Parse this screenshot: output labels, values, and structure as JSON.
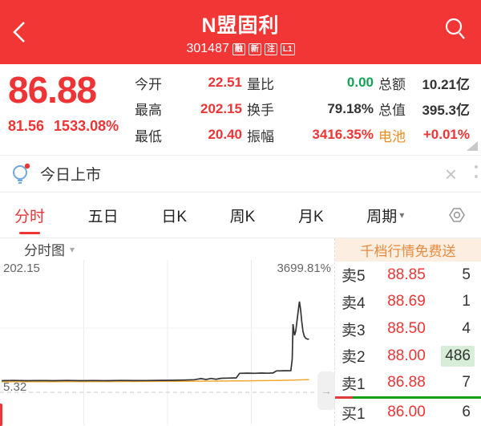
{
  "header": {
    "title": "N盟固利",
    "code": "301487",
    "badges": [
      "融",
      "新",
      "注",
      "L1"
    ]
  },
  "quote": {
    "price": "86.88",
    "change": "81.56",
    "change_pct": "1533.08%",
    "stats": [
      {
        "label": "今开",
        "value": "22.51",
        "color": "red"
      },
      {
        "label": "最高",
        "value": "202.15",
        "color": "red"
      },
      {
        "label": "最低",
        "value": "20.40",
        "color": "red"
      },
      {
        "label": "量比",
        "value": "0.00",
        "color": "green"
      },
      {
        "label": "换手",
        "value": "79.18%",
        "color": "dark"
      },
      {
        "label": "振幅",
        "value": "3416.35%",
        "color": "red"
      },
      {
        "label": "总额",
        "value": "10.21亿",
        "color": "dark"
      },
      {
        "label": "总值",
        "value": "395.3亿",
        "color": "dark"
      },
      {
        "label": "电池",
        "value": "+0.01%",
        "color": "red",
        "label_color": "orange"
      }
    ]
  },
  "notice": {
    "text": "今日上市"
  },
  "tabs": {
    "items": [
      "分时",
      "五日",
      "日K",
      "周K",
      "月K"
    ],
    "active": "分时",
    "period_label": "周期"
  },
  "chart_data": {
    "type": "line",
    "title": "分时图",
    "top_label": "202.15",
    "right_top_label": "3699.81%",
    "prev_close_label": "5.32",
    "y_top": 202.15,
    "y_prev_close": 5.32,
    "x_axis": "trading session 09:30-15:00, x as fraction of day",
    "grid": {
      "v_fractions": [
        0.25,
        0.5,
        0.75
      ],
      "h_mid_value": 103.74
    },
    "series": [
      {
        "name": "price",
        "color": "#333333",
        "points": [
          [
            0.005,
            23.2
          ],
          [
            0.04,
            23.5
          ],
          [
            0.08,
            23.1
          ],
          [
            0.12,
            23.4
          ],
          [
            0.16,
            23.2
          ],
          [
            0.2,
            23.5
          ],
          [
            0.24,
            23.2
          ],
          [
            0.28,
            23.4
          ],
          [
            0.32,
            23.2
          ],
          [
            0.36,
            23.5
          ],
          [
            0.4,
            23.3
          ],
          [
            0.44,
            23.4
          ],
          [
            0.48,
            23.6
          ],
          [
            0.52,
            23.8
          ],
          [
            0.55,
            24.1
          ],
          [
            0.58,
            24.6
          ],
          [
            0.6,
            26.3
          ],
          [
            0.615,
            25.0
          ],
          [
            0.63,
            26.6
          ],
          [
            0.645,
            25.4
          ],
          [
            0.66,
            26.8
          ],
          [
            0.68,
            27.1
          ],
          [
            0.705,
            27.5
          ],
          [
            0.715,
            34.5
          ],
          [
            0.74,
            34.7
          ],
          [
            0.76,
            34.5
          ],
          [
            0.78,
            34.8
          ],
          [
            0.8,
            34.6
          ],
          [
            0.815,
            35.0
          ],
          [
            0.825,
            38.2
          ],
          [
            0.85,
            38.4
          ],
          [
            0.868,
            38.5
          ],
          [
            0.872,
            56.0
          ],
          [
            0.8745,
            109.9
          ],
          [
            0.877,
            99.5
          ],
          [
            0.879,
            92.7
          ],
          [
            0.8825,
            99.0
          ],
          [
            0.886,
            113.0
          ],
          [
            0.89,
            130.0
          ],
          [
            0.8935,
            144.4
          ],
          [
            0.897,
            133.0
          ],
          [
            0.9005,
            114.0
          ],
          [
            0.904,
            99.0
          ],
          [
            0.908,
            91.5
          ],
          [
            0.912,
            88.3
          ],
          [
            0.917,
            86.9
          ],
          [
            0.922,
            86.88
          ]
        ]
      },
      {
        "name": "avg",
        "color": "#f0a830",
        "points": [
          [
            0.005,
            21.6
          ],
          [
            0.15,
            21.7
          ],
          [
            0.3,
            21.8
          ],
          [
            0.45,
            22.0
          ],
          [
            0.6,
            22.4
          ],
          [
            0.72,
            22.9
          ],
          [
            0.82,
            23.5
          ],
          [
            0.88,
            24.2
          ],
          [
            0.922,
            24.9
          ]
        ]
      }
    ]
  },
  "order_book": {
    "banner": "千档行情免费送",
    "asks": [
      {
        "label": "卖5",
        "price": "88.85",
        "volume": "5"
      },
      {
        "label": "卖4",
        "price": "88.69",
        "volume": "1"
      },
      {
        "label": "卖3",
        "price": "88.50",
        "volume": "4"
      },
      {
        "label": "卖2",
        "price": "88.00",
        "volume": "486",
        "highlight": true
      },
      {
        "label": "卖1",
        "price": "86.88",
        "volume": "7"
      }
    ],
    "bids": [
      {
        "label": "买1",
        "price": "86.00",
        "volume": "6"
      }
    ],
    "ratio_bar": {
      "red_pct": 12,
      "green_pct": 88
    }
  },
  "icons": {
    "close": "×",
    "caret_down": "▾",
    "panel_toggle_arrow": "→"
  },
  "colors": {
    "red": "#ee3434",
    "green": "#13a354",
    "orange": "#f08c1e",
    "header_red": "#f23636",
    "banner_bg": "#fdeee2",
    "banner_text": "#e98a3e",
    "highlight_green": "#d8edd8",
    "bar_green": "#16a016",
    "bar_red": "#e23b3b",
    "dark": "#333333",
    "gray": "#888888"
  }
}
